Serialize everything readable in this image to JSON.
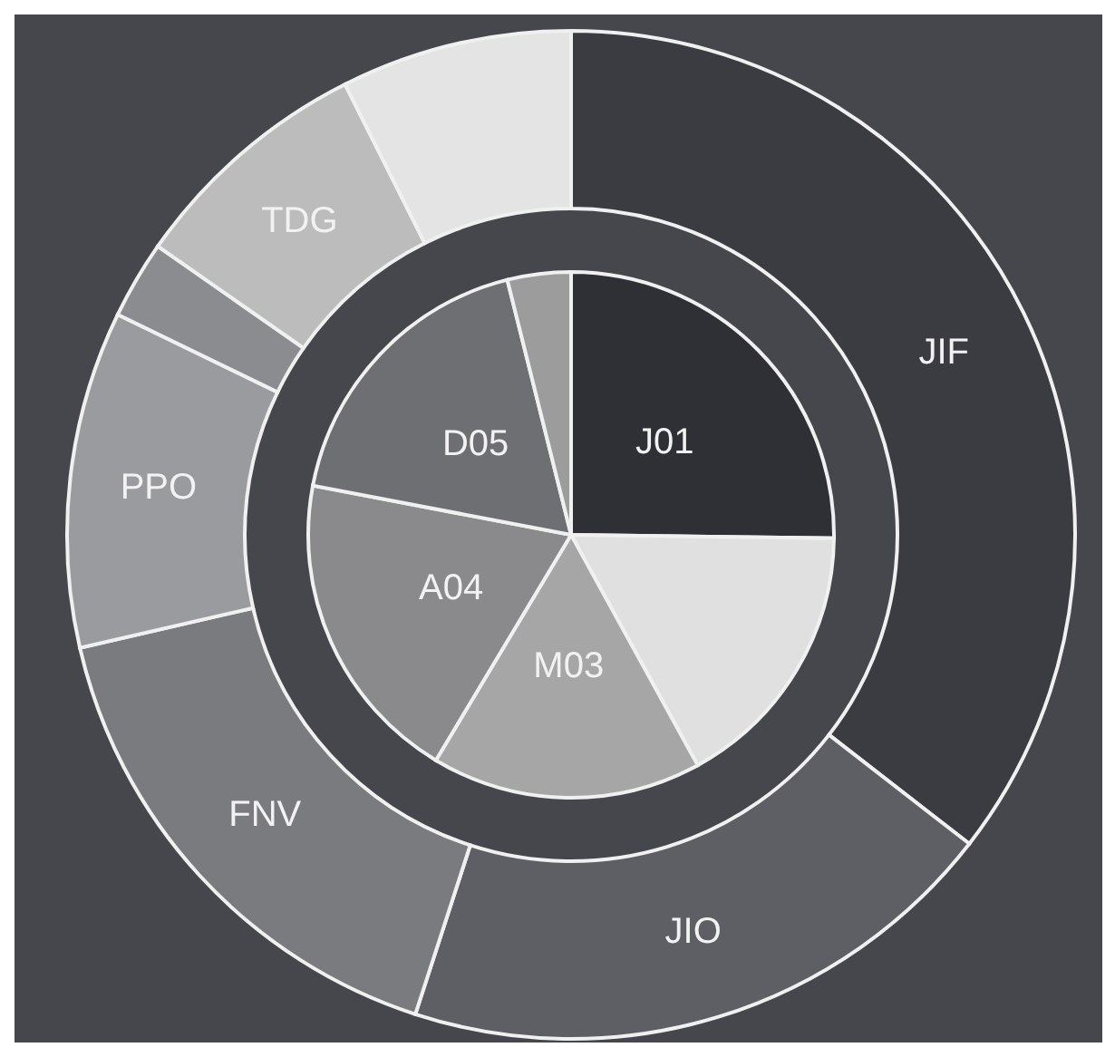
{
  "chart_data": [
    {
      "type": "donut",
      "categories": [
        "JIF",
        "JIO",
        "FNV",
        "PPO",
        null,
        "TDG",
        null
      ],
      "values": [
        35.5,
        19.5,
        16.4,
        10.8,
        2.5,
        7.9,
        7.4
      ],
      "colors": [
        "#3a3c42",
        "#5d5f64",
        "#7a7b7f",
        "#9a9b9e",
        "#8a8c90",
        "#bcbcbc",
        "#e4e4e4"
      ]
    },
    {
      "type": "pie",
      "categories": [
        "J01",
        null,
        "M03",
        "A04",
        "D05",
        null
      ],
      "values": [
        25.2,
        16.8,
        16.6,
        19.4,
        18.1,
        3.9
      ],
      "colors": [
        "#2e3036",
        "#e0e0e0",
        "#a6a6a6",
        "#8a8a8d",
        "#6e6f73",
        "#9c9c9c"
      ]
    }
  ]
}
